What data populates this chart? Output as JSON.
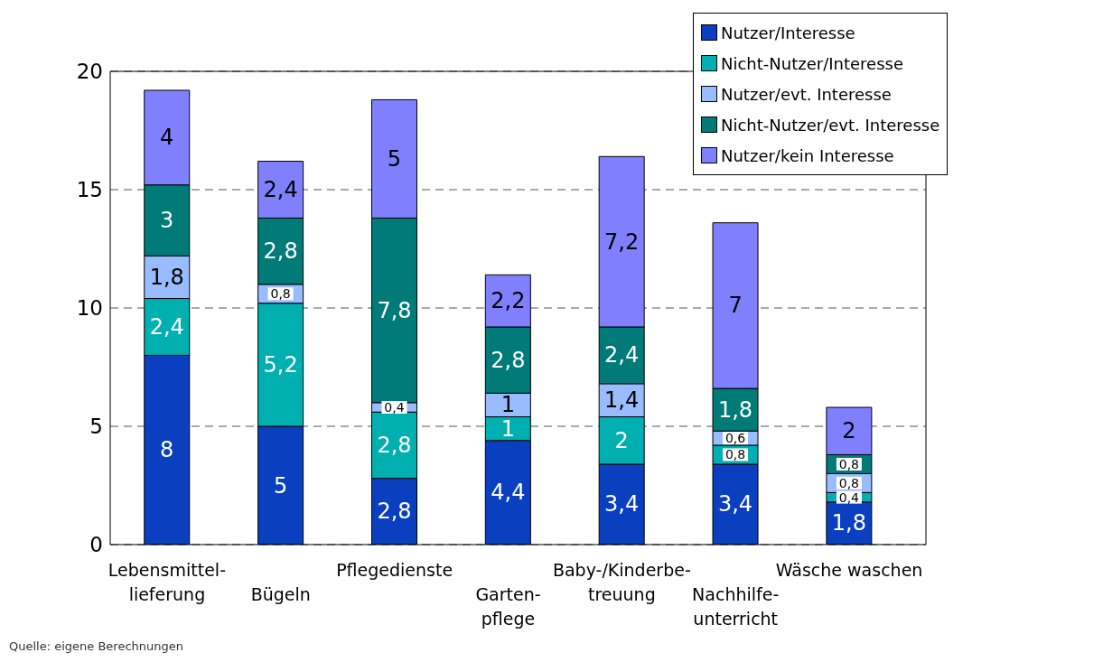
{
  "chart_data": {
    "type": "bar",
    "stacked": true,
    "categories": [
      "Lebensmittel-\nlieferung",
      "Bügeln",
      "Pflegedienste",
      "Garten-\npflege",
      "Baby-/Kinderbe-\ntreuung",
      "Nachhilfe-\nunterricht",
      "Wäsche waschen"
    ],
    "series": [
      {
        "name": "Nutzer/Interesse",
        "color": "#0a3fc0",
        "values": [
          8,
          5,
          2.8,
          4.4,
          3.4,
          3.4,
          1.8
        ],
        "value_labels": [
          "8",
          "5",
          "2,8",
          "4,4",
          "3,4",
          "3,4",
          "1,8"
        ]
      },
      {
        "name": "Nicht-Nutzer/Interesse",
        "color": "#00b0b0",
        "values": [
          2.4,
          5.2,
          2.8,
          1,
          2,
          0.8,
          0.4
        ],
        "value_labels": [
          "2,4",
          "5,2",
          "2,8",
          "1",
          "2",
          "0,8",
          "0,4"
        ]
      },
      {
        "name": "Nutzer/evt. Interesse",
        "color": "#99bbff",
        "values": [
          1.8,
          0.8,
          0.4,
          1,
          1.4,
          0.6,
          0.8
        ],
        "value_labels": [
          "1,8",
          "0,8",
          "0,4",
          "1",
          "1,4",
          "0,6",
          "0,8"
        ]
      },
      {
        "name": "Nicht-Nutzer/evt. Interesse",
        "color": "#007b78",
        "values": [
          3,
          2.8,
          7.8,
          2.8,
          2.4,
          1.8,
          0.8
        ],
        "value_labels": [
          "3",
          "2,8",
          "7,8",
          "2,8",
          "2,4",
          "1,8",
          "0,8"
        ]
      },
      {
        "name": "Nutzer/kein Interesse",
        "color": "#8080ff",
        "values": [
          4,
          2.4,
          5,
          2.2,
          7.2,
          7,
          2
        ],
        "value_labels": [
          "4",
          "2,4",
          "5",
          "2,2",
          "7,2",
          "7",
          "2"
        ]
      }
    ],
    "ylim": [
      0,
      20
    ],
    "yticks": [
      0,
      5,
      10,
      15,
      20
    ],
    "grid": "y",
    "legend": "top right",
    "annotations": [
      "Quelle: eigene Berechnungen"
    ]
  }
}
